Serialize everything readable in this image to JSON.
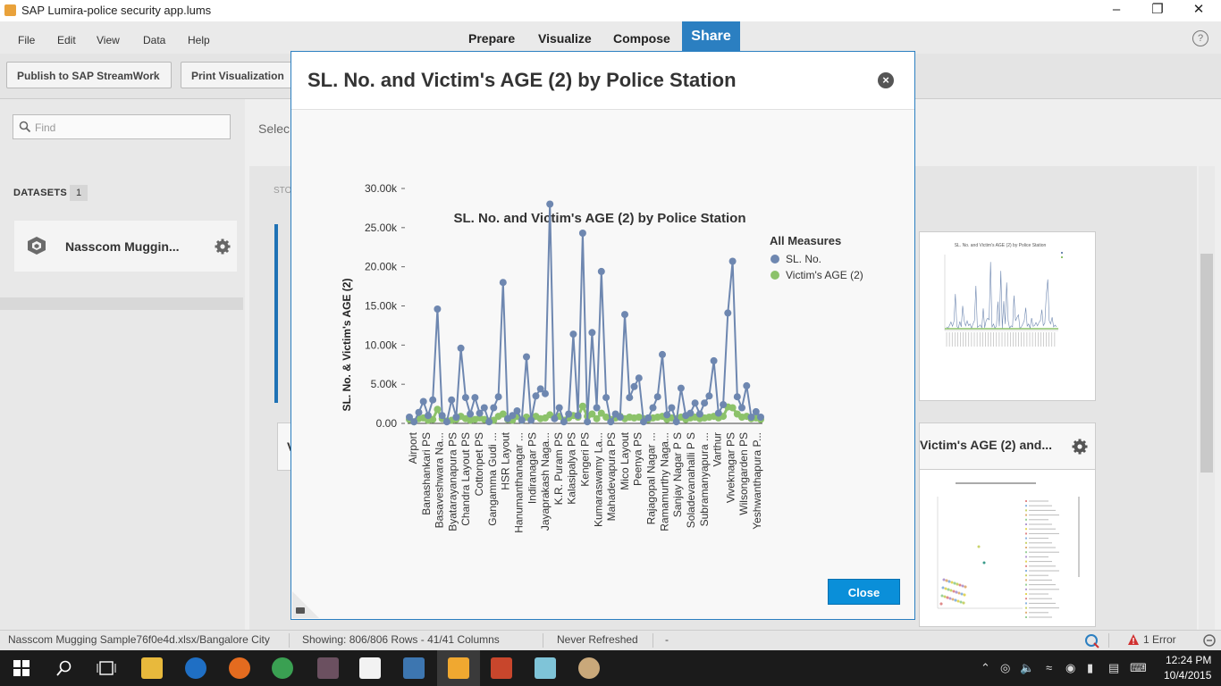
{
  "window": {
    "title": "SAP Lumira-police security app.lums"
  },
  "menu": {
    "items": [
      "File",
      "Edit",
      "View",
      "Data",
      "Help"
    ]
  },
  "nav": {
    "prepare": "Prepare",
    "visualize": "Visualize",
    "compose": "Compose",
    "share": "Share",
    "help": "?"
  },
  "toolbar": {
    "publish": "Publish to SAP StreamWork",
    "print": "Print Visualization"
  },
  "sidebar": {
    "find_placeholder": "Find",
    "datasets_label": "DATASETS",
    "datasets_count": "1",
    "dataset_name": "Nasscom Muggin..."
  },
  "main": {
    "select_label": "Selec",
    "stor_label": "STO",
    "card2_title": "Victim's AGE (2) and...",
    "left_card_letter": "V"
  },
  "modal": {
    "title": "SL. No. and Victim's AGE (2) by Police Station",
    "close_label": "Close",
    "close_x": "×"
  },
  "chart_data": {
    "type": "line",
    "title": "SL. No. and Victim's AGE (2) by Police Station",
    "ylabel": "SL. No. & Victim's AGE (2)",
    "xlabel": "",
    "ylim": [
      0,
      30000
    ],
    "yticks": [
      "0.00",
      "5.00k",
      "10.00k",
      "15.00k",
      "20.00k",
      "25.00k",
      "30.00k"
    ],
    "legend_title": "All Measures",
    "x_labels": [
      "Airport",
      "Banashankari PS",
      "Basaveshwara Na...",
      "Byatarayanapura PS",
      "Chandra Layout PS",
      "Cottonpet PS",
      "Gangamma Gudi ...",
      "HSR Layout",
      "Hanumanthanagar ...",
      "Indiranagar PS",
      "Jayaprakash Naga...",
      "K.R. Puram PS",
      "Kalasipalya PS",
      "Kengeri PS",
      "Kumaraswamy La...",
      "Mahadevapura PS",
      "Mico Layout",
      "Peenya PS",
      "Rajagopal Nagar ...",
      "Ramamurthy Naga...",
      "Sanjay Nagar P S",
      "Soladevanahalli P S",
      "Subramanyapura ...",
      "Varthur",
      "Viveknagar PS",
      "Wilsongarden PS",
      "Yeshwanthapura P..."
    ],
    "series": [
      {
        "name": "SL. No.",
        "color": "#6e87b0",
        "values": [
          800,
          200,
          1400,
          2800,
          1000,
          3000,
          14600,
          1000,
          200,
          3000,
          800,
          9600,
          3300,
          1200,
          3300,
          1300,
          2000,
          200,
          2000,
          3400,
          18000,
          600,
          1000,
          1600,
          400,
          8500,
          400,
          3500,
          4400,
          3800,
          28000,
          600,
          2000,
          200,
          1200,
          11400,
          1000,
          24300,
          200,
          11600,
          2000,
          19400,
          3300,
          200,
          1200,
          800,
          13900,
          3300,
          4700,
          5800,
          200,
          700,
          2000,
          3400,
          8800,
          1100,
          2000,
          200,
          4500,
          1000,
          1300,
          2600,
          1200,
          2600,
          3500,
          8000,
          1300,
          2400,
          14100,
          20700,
          3400,
          2000,
          4800,
          800,
          1500,
          800
        ]
      },
      {
        "name": "Victim's AGE (2)",
        "color": "#8cc26a",
        "values": [
          500,
          200,
          600,
          700,
          400,
          500,
          1800,
          600,
          300,
          400,
          500,
          900,
          600,
          400,
          500,
          700,
          500,
          300,
          400,
          900,
          1200,
          500,
          400,
          900,
          400,
          800,
          500,
          900,
          600,
          700,
          1100,
          700,
          900,
          400,
          700,
          1000,
          800,
          2200,
          900,
          1200,
          600,
          1300,
          800,
          500,
          700,
          900,
          600,
          800,
          700,
          800,
          600,
          500,
          700,
          800,
          900,
          500,
          700,
          600,
          800,
          500,
          700,
          800,
          600,
          700,
          800,
          900,
          700,
          900,
          2100,
          2000,
          1200,
          800,
          900,
          600,
          700,
          500
        ]
      }
    ]
  },
  "statusbar": {
    "file": "Nasscom Mugging Sample76f0e4d.xlsx/Bangalore City",
    "rows": "Showing: 806/806 Rows - 41/41 Columns",
    "refresh": "Never Refreshed",
    "dash": "-",
    "errors": "1 Error"
  },
  "taskbar": {
    "time": "12:24 PM",
    "date": "10/4/2015"
  }
}
